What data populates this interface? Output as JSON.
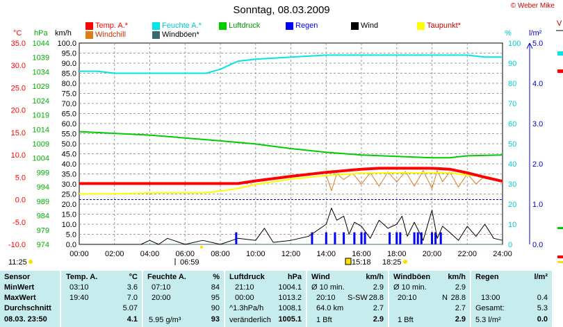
{
  "header": {
    "title": "Sonntag, 08.03.2009",
    "copyright": "© Weber Mike",
    "right_edge": "V"
  },
  "legend": [
    {
      "label": "Temp. A.*",
      "color": "#ff0000",
      "text_color": "#ff0000"
    },
    {
      "label": "Feuchte A.*",
      "color": "#00e5e5",
      "text_color": "#00cccc"
    },
    {
      "label": "Luftdruck",
      "color": "#00cc00",
      "text_color": "#009900"
    },
    {
      "label": "Regen",
      "color": "#0000ff",
      "text_color": "#0000ff"
    },
    {
      "label": "Wind",
      "color": "#000000",
      "text_color": "#000000"
    },
    {
      "label": "Taupunkt*",
      "color": "#ffff00",
      "text_color": "#cc0000"
    },
    {
      "label": "Windchill",
      "color": "#e07b1a",
      "text_color": "#cc3300"
    },
    {
      "label": "Windböen*",
      "color": "#3a6a6a",
      "text_color": "#000000"
    }
  ],
  "axes": {
    "temp_unit": "°C",
    "hpa_unit": "hPa",
    "kmh_unit": "km/h",
    "pct_unit": "%",
    "rain_unit": "l/m²",
    "temp_ticks": [
      "35.0",
      "30.0",
      "25.0",
      "20.0",
      "15.0",
      "10.0",
      "5.0",
      "0.0",
      "-5.0",
      "-10.0"
    ],
    "hpa_ticks": [
      "1044",
      "1039",
      "1034",
      "1029",
      "1024",
      "1019",
      "1014",
      "1009",
      "1004",
      "999",
      "994",
      "989",
      "984",
      "979",
      "974"
    ],
    "kmh_ticks": [
      "100.0",
      "95.0",
      "90.0",
      "85.0",
      "80.0",
      "75.0",
      "70.0",
      "65.0",
      "60.0",
      "55.0",
      "50.0",
      "45.0",
      "40.0",
      "35.0",
      "30.0",
      "25.0",
      "20.0",
      "15.0",
      "10.0",
      "5.0",
      "0.0"
    ],
    "pct_ticks": [
      "100",
      "90",
      "80",
      "70",
      "60",
      "50",
      "40",
      "30",
      "20",
      "10",
      "0"
    ],
    "rain_ticks": [
      "5.0",
      "4.0",
      "3.0",
      "2.0",
      "1.0",
      "0.0"
    ],
    "x_ticks": [
      "00:00",
      "02:00",
      "04:00",
      "06:00",
      "08:00",
      "10:00",
      "12:00",
      "14:00",
      "16:00",
      "18:00",
      "20:00",
      "22:00",
      "24:00"
    ]
  },
  "markers": {
    "sunrise_left": "11:25",
    "sunrise": "06:59",
    "sun_mid": "15:18",
    "sunset": "18:25"
  },
  "chart_data": {
    "type": "line",
    "x_unit": "hours",
    "x_range": [
      0,
      24
    ],
    "temp_range": [
      -10,
      35
    ],
    "kmh_range": [
      0,
      100
    ],
    "pct_range": [
      0,
      100
    ],
    "hpa_range": [
      974,
      1044
    ],
    "series": [
      {
        "name": "Temp. A.*",
        "axis": "temp",
        "color": "#ff0000",
        "x": [
          0,
          2,
          4,
          6,
          8,
          9,
          10,
          12,
          14,
          16,
          17,
          18,
          20,
          21,
          22,
          23,
          24
        ],
        "y": [
          3.6,
          3.6,
          3.6,
          3.6,
          3.6,
          3.6,
          4.2,
          5.2,
          6.1,
          6.8,
          7.0,
          7.0,
          7.0,
          6.8,
          6.0,
          5.0,
          4.1
        ]
      },
      {
        "name": "Feuchte A.*",
        "axis": "pct",
        "color": "#00e5e5",
        "x": [
          0,
          1,
          2,
          4,
          6,
          7.2,
          8,
          9,
          10,
          12,
          14,
          16,
          18,
          20,
          22,
          23,
          24
        ],
        "y": [
          86,
          86,
          85,
          85,
          85,
          85,
          87,
          91,
          92,
          93,
          94,
          94,
          94,
          94,
          94,
          93,
          93
        ]
      },
      {
        "name": "Luftdruck",
        "axis": "hpa",
        "color": "#00cc00",
        "x": [
          0,
          2,
          4,
          6,
          8,
          10,
          12,
          14,
          16,
          18,
          20,
          21,
          22,
          24
        ],
        "y": [
          1013.2,
          1012.6,
          1012.0,
          1011.0,
          1010.0,
          1008.9,
          1007.3,
          1006.0,
          1005.1,
          1004.6,
          1004.1,
          1004.1,
          1004.8,
          1005.1
        ]
      },
      {
        "name": "Taupunkt*",
        "axis": "temp",
        "color": "#ffff00",
        "x": [
          0,
          2,
          4,
          6,
          7,
          8,
          9,
          10,
          12,
          14,
          16,
          18,
          20,
          21,
          22,
          23,
          24
        ],
        "y": [
          1.3,
          1.3,
          1.5,
          1.5,
          1.5,
          1.9,
          2.5,
          3.4,
          4.6,
          5.4,
          5.9,
          6.0,
          6.0,
          6.0,
          5.5,
          5.2,
          3.9
        ]
      },
      {
        "name": "Windchill",
        "axis": "temp",
        "color": "#e07b1a",
        "x": [
          14,
          14.3,
          14.6,
          15,
          15.5,
          16,
          16.5,
          17,
          17.5,
          18,
          18.5,
          19,
          19.5,
          20,
          20.3,
          20.6,
          21,
          21.5,
          22,
          22.5,
          23,
          23.5,
          24
        ],
        "y": [
          5.5,
          2.0,
          5.8,
          4.5,
          5.9,
          3.5,
          6.0,
          3.0,
          6.2,
          4.0,
          6.3,
          3.0,
          6.5,
          2.5,
          6.5,
          4.0,
          6.2,
          2.8,
          5.8,
          3.5,
          5.3,
          4.8,
          3.8
        ]
      },
      {
        "name": "Wind",
        "axis": "kmh",
        "color": "#000000",
        "x": [
          0,
          3.5,
          4,
          4.5,
          5,
          6,
          7,
          8,
          9,
          10,
          10.5,
          11,
          12,
          13,
          14,
          14.3,
          14.6,
          15,
          15.3,
          15.6,
          16,
          16.5,
          17,
          17.5,
          18,
          18.3,
          18.6,
          19,
          19.5,
          20,
          20.3,
          20.6,
          21,
          21.5,
          22,
          22.5,
          23,
          23.5,
          24
        ],
        "y": [
          0,
          0,
          2,
          0,
          3,
          0,
          2,
          0,
          3,
          2,
          8,
          1,
          2,
          4,
          10,
          18,
          12,
          14,
          5,
          11,
          9,
          3,
          12,
          8,
          10,
          14,
          4,
          11,
          2,
          17,
          3,
          9,
          6,
          2,
          9,
          4,
          10,
          3,
          2
        ]
      },
      {
        "name": "Windböen*",
        "axis": "kmh",
        "color": "#3a6a6a",
        "x": [
          0,
          24
        ],
        "y": [
          0,
          0
        ]
      },
      {
        "name": "Regen",
        "axis": "rain",
        "type": "bar",
        "color": "#0000ff",
        "x": [
          8.9,
          13.2,
          14.0,
          14.5,
          15.0,
          15.6,
          16.0,
          16.2,
          17.6,
          18.0,
          18.2,
          19.0,
          19.2,
          19.4,
          20.0,
          20.2,
          20.5
        ],
        "y": [
          0.3,
          0.3,
          0.3,
          0.3,
          0.3,
          0.3,
          0.3,
          0.3,
          0.3,
          0.3,
          0.3,
          0.3,
          0.3,
          0.3,
          0.3,
          0.3,
          0.3
        ]
      }
    ],
    "reference_line": {
      "name": "0°C",
      "axis": "temp",
      "y": 0,
      "color": "#0000cc"
    }
  },
  "stats": {
    "sensor": {
      "header": "Sensor",
      "rows": [
        "MinWert",
        "MaxWert",
        "Durchschnitt"
      ],
      "current": "08.03. 23:50"
    },
    "temp": {
      "header": "Temp. A.",
      "unit": "°C",
      "rows": [
        [
          "03:10",
          "3.6"
        ],
        [
          "19:40",
          "7.0"
        ],
        [
          "",
          "5.07"
        ]
      ],
      "current": "4.1"
    },
    "humidity": {
      "header": "Feuchte A.",
      "unit": "%",
      "rows": [
        [
          "07:10",
          "84"
        ],
        [
          "20:00",
          "95"
        ],
        [
          "",
          "90"
        ]
      ],
      "current_left": "5.95 g/m³",
      "current": "93"
    },
    "pressure": {
      "header": "Luftdruck",
      "unit": "hPa",
      "rows": [
        [
          "21:10",
          "1004.1"
        ],
        [
          "00:00",
          "1013.2"
        ],
        [
          "^1.3hPa/h",
          "1008.1"
        ]
      ],
      "current_left": "veränderlich",
      "current": "1005.1"
    },
    "wind": {
      "header": "Wind",
      "unit": "km/h",
      "rows": [
        [
          "Ø 10 min.",
          "",
          "2.9"
        ],
        [
          "20:10",
          "S-SW",
          "28.8"
        ],
        [
          "64.0 km",
          "",
          "2.7"
        ]
      ],
      "current_left": "1 Bft",
      "current": "2.9"
    },
    "gusts": {
      "header": "Windböen",
      "unit": "km/h",
      "rows": [
        [
          "Ø 10 min.",
          "",
          "2.9"
        ],
        [
          "20:10",
          "N",
          "28.8"
        ],
        [
          "",
          "",
          "2.7"
        ]
      ],
      "current_left": "1 Bft",
      "current": "2.9"
    },
    "rain": {
      "header": "Regen",
      "unit": "l/m²",
      "rows": [
        [
          "",
          ""
        ],
        [
          "13:00",
          "0.4"
        ],
        [
          "Gesamt:",
          "5.3"
        ]
      ],
      "current_left": "5.3 l/m²",
      "current": "0.0"
    }
  }
}
